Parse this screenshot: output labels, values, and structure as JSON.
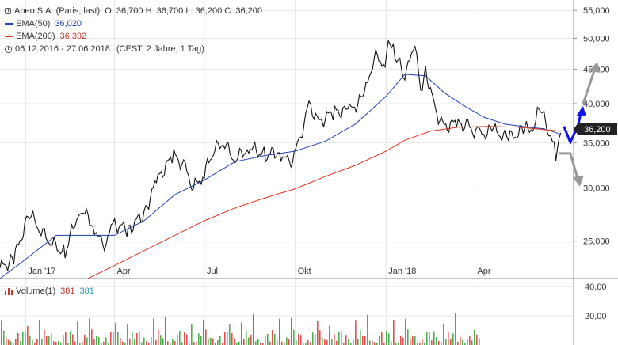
{
  "header": {
    "title": "Abeo S.A. (Paris, last)",
    "ohlc": "O: 36,700  H: 36,700  L: 36,200  C: 36,200",
    "ema50_label": "EMA(50)",
    "ema50_value": "36,020",
    "ema200_label": "EMA(200)",
    "ema200_value": "36,392",
    "range": "06.12.2016 - 27.06.2018",
    "range_note": "(CEST, 2 Jahre, 1 Tag)"
  },
  "volume_legend": {
    "label": "Volume(1)",
    "value_red": "381",
    "value_teal": "381"
  },
  "last_price_label": "36,200",
  "colors": {
    "price": "#111111",
    "ema50": "#1f3fb0",
    "ema200": "#e03020",
    "arrow_up_blue": "#1010ee",
    "arrow_gray": "#999999",
    "vol_up": "#4caf50",
    "vol_down": "#e05050",
    "grid": "#e6e6e6"
  },
  "chart_data": {
    "type": "line",
    "title": "Abeo S.A. (Paris, last)",
    "scale": "log",
    "ylim": [
      22000,
      57000
    ],
    "y_ticks": [
      "55,000",
      "50,000",
      "45,000",
      "40,000",
      "35,000",
      "30,000",
      "25,000"
    ],
    "y_tick_values": [
      55000,
      50000,
      45000,
      40000,
      35000,
      30000,
      25000
    ],
    "xlim": [
      "2016-12-06",
      "2018-07-10"
    ],
    "x_ticks": [
      "Jan '17",
      "Apr",
      "Jul",
      "Okt",
      "Jan '18",
      "Apr"
    ],
    "x_tick_dates": [
      "2017-01-01",
      "2017-04-01",
      "2017-07-01",
      "2017-10-01",
      "2018-01-01",
      "2018-04-01"
    ],
    "series": [
      {
        "name": "Abeo S.A. (Paris, last)",
        "x": [
          "2016-12-06",
          "2016-12-20",
          "2017-01-05",
          "2017-01-15",
          "2017-01-25",
          "2017-02-10",
          "2017-02-25",
          "2017-03-10",
          "2017-03-20",
          "2017-04-01",
          "2017-04-15",
          "2017-05-01",
          "2017-05-15",
          "2017-05-31",
          "2017-06-10",
          "2017-06-20",
          "2017-07-01",
          "2017-07-10",
          "2017-07-20",
          "2017-08-01",
          "2017-08-15",
          "2017-09-01",
          "2017-09-15",
          "2017-09-25",
          "2017-10-05",
          "2017-10-15",
          "2017-10-25",
          "2017-11-10",
          "2017-11-25",
          "2017-12-10",
          "2017-12-20",
          "2017-12-31",
          "2018-01-05",
          "2018-01-10",
          "2018-01-20",
          "2018-01-25",
          "2018-02-01",
          "2018-02-05",
          "2018-02-10",
          "2018-02-20",
          "2018-03-01",
          "2018-03-15",
          "2018-03-25",
          "2018-04-05",
          "2018-04-20",
          "2018-05-05",
          "2018-05-20",
          "2018-05-31",
          "2018-06-05",
          "2018-06-15",
          "2018-06-22",
          "2018-06-27"
        ],
        "values": [
          22800,
          23500,
          27500,
          26000,
          25000,
          24000,
          28000,
          26500,
          24500,
          26500,
          26000,
          27500,
          31000,
          33500,
          32500,
          30000,
          31500,
          34000,
          35000,
          33000,
          34500,
          33500,
          34000,
          32500,
          35000,
          40000,
          37500,
          39000,
          39000,
          41000,
          47000,
          46000,
          49500,
          47000,
          44000,
          47500,
          48500,
          42000,
          45000,
          39000,
          37000,
          37500,
          37000,
          36000,
          36500,
          35500,
          36500,
          37000,
          39500,
          36500,
          33800,
          36200
        ]
      },
      {
        "name": "EMA(50)",
        "x": [
          "2016-12-06",
          "2017-01-01",
          "2017-02-01",
          "2017-03-01",
          "2017-04-01",
          "2017-05-01",
          "2017-06-01",
          "2017-07-01",
          "2017-08-01",
          "2017-09-01",
          "2017-10-01",
          "2017-11-01",
          "2017-12-01",
          "2018-01-01",
          "2018-01-20",
          "2018-02-10",
          "2018-03-01",
          "2018-03-20",
          "2018-04-10",
          "2018-05-01",
          "2018-05-25",
          "2018-06-10",
          "2018-06-27"
        ],
        "values": [
          22000,
          23500,
          25500,
          25500,
          25500,
          26800,
          29300,
          30800,
          32800,
          33500,
          34000,
          35200,
          37300,
          41000,
          44200,
          44000,
          41500,
          39800,
          38200,
          37300,
          36900,
          36700,
          36020
        ]
      },
      {
        "name": "EMA(200)",
        "x": [
          "2017-03-05",
          "2017-04-01",
          "2017-05-01",
          "2017-06-01",
          "2017-07-01",
          "2017-08-01",
          "2017-09-01",
          "2017-10-01",
          "2017-11-01",
          "2017-12-01",
          "2018-01-01",
          "2018-01-20",
          "2018-02-15",
          "2018-03-15",
          "2018-04-15",
          "2018-05-15",
          "2018-06-10",
          "2018-06-27"
        ],
        "values": [
          22000,
          23000,
          24200,
          25500,
          26800,
          28000,
          29000,
          29900,
          31200,
          32400,
          34000,
          35300,
          36400,
          36900,
          37000,
          36900,
          36600,
          36392
        ]
      }
    ],
    "volume_ylim": [
      0,
      45000
    ],
    "volume_ticks": [
      "40,00",
      "20,00"
    ],
    "volume_tick_values": [
      40000,
      20000
    ]
  }
}
